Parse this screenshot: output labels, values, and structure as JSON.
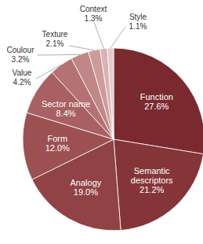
{
  "chart_data": {
    "type": "pie",
    "categories": [
      "Function",
      "Semantic descriptors",
      "Analogy",
      "Form",
      "Sector name",
      "Value",
      "Coulour",
      "Texture",
      "Context",
      "Style"
    ],
    "values": [
      27.6,
      21.2,
      19.0,
      12.0,
      8.4,
      4.2,
      3.2,
      2.1,
      1.3,
      1.1
    ],
    "value_labels": [
      "27.6%",
      "21.2%",
      "19.0%",
      "12.0%",
      "8.4%",
      "4.2%",
      "3.2%",
      "2.1%",
      "1.3%",
      "1.1%"
    ],
    "colors": [
      "#7a2a2e",
      "#853538",
      "#904244",
      "#9c5052",
      "#a86062",
      "#b47274",
      "#c08688",
      "#cc9c9d",
      "#d8b3b4",
      "#e4caca"
    ],
    "data_labels": true
  }
}
